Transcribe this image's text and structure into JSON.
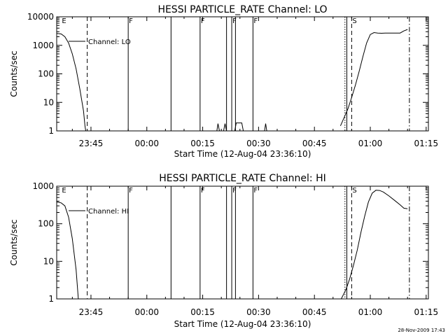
{
  "footer": {
    "timestamp": "28-Nov-2009 17:43"
  },
  "chart_data": [
    {
      "type": "line",
      "title": "HESSI PARTICLE_RATE Channel: LO",
      "xlabel": "Start Time (12-Aug-04 23:36:10)",
      "ylabel": "Counts/sec",
      "yscale": "log",
      "ylim": [
        1,
        10000
      ],
      "xlim_minutes": [
        -24.2,
        75.6
      ],
      "x_tick_labels": [
        "23:45",
        "00:00",
        "00:15",
        "00:30",
        "00:45",
        "01:00",
        "01:15"
      ],
      "x_tick_minutes": [
        -15,
        0,
        15,
        30,
        45,
        60,
        75
      ],
      "y_tick_labels": [
        "1",
        "10",
        "100",
        "1000",
        "10000"
      ],
      "y_tick_values": [
        1,
        10,
        100,
        1000,
        10000
      ],
      "grid": false,
      "legend": {
        "position": "top-left",
        "entries": [
          "Channel: LO"
        ]
      },
      "event_markers": [
        {
          "label": "E",
          "minute": -23.0,
          "style": "none"
        },
        {
          "label": "",
          "minute": -16.0,
          "style": "dashed"
        },
        {
          "label": "F",
          "minute": -5.0,
          "style": "solid"
        },
        {
          "label": "",
          "minute": 6.5,
          "style": "solid"
        },
        {
          "label": "F",
          "minute": 14.3,
          "style": "solid"
        },
        {
          "label": "",
          "minute": 21.4,
          "style": "solid"
        },
        {
          "label": "F",
          "minute": 22.8,
          "style": "solid"
        },
        {
          "label": "",
          "minute": 23.8,
          "style": "solid"
        },
        {
          "label": "F",
          "minute": 28.5,
          "style": "solid"
        },
        {
          "label": "",
          "minute": 53.2,
          "style": "dotted"
        },
        {
          "label": "",
          "minute": 53.7,
          "style": "solid"
        },
        {
          "label": "S",
          "minute": 55.0,
          "style": "dashed"
        },
        {
          "label": "",
          "minute": 70.5,
          "style": "dashdot"
        }
      ],
      "series": [
        {
          "name": "Channel: LO",
          "x": [
            -24.2,
            -23.0,
            -22.0,
            -21.0,
            -20.0,
            -19.0,
            -18.0,
            -17.0,
            -16.6,
            -16.4,
            52.0,
            53.0,
            54.0,
            55.0,
            56.0,
            57.0,
            58.0,
            59.0,
            60.0,
            61.0,
            62.0,
            63.0,
            64.0,
            66.0,
            68.0,
            69.0,
            70.0
          ],
          "y": [
            2600,
            2500,
            2000,
            1200,
            500,
            150,
            30,
            5,
            1.5,
            1,
            1.5,
            3,
            6,
            15,
            40,
            120,
            400,
            1200,
            2400,
            2800,
            2700,
            2650,
            2700,
            2700,
            2700,
            3200,
            3600
          ]
        }
      ],
      "noise_bursts": [
        {
          "x": [
            18.8,
            19.1,
            19.5
          ],
          "y": [
            1,
            1.8,
            1
          ]
        },
        {
          "x": [
            20.6,
            21.0,
            21.4
          ],
          "y": [
            1,
            1.8,
            1
          ]
        },
        {
          "x": [
            23.6,
            24.0,
            24.3,
            25.0,
            25.5,
            25.9
          ],
          "y": [
            1,
            1.9,
            1.9,
            1.9,
            1.9,
            1
          ]
        },
        {
          "x": [
            31.6,
            31.9,
            32.2
          ],
          "y": [
            1,
            1.8,
            1
          ]
        }
      ]
    },
    {
      "type": "line",
      "title": "HESSI PARTICLE_RATE Channel: HI",
      "xlabel": "Start Time (12-Aug-04 23:36:10)",
      "ylabel": "Counts/sec",
      "yscale": "log",
      "ylim": [
        1,
        1000
      ],
      "xlim_minutes": [
        -24.2,
        75.6
      ],
      "x_tick_labels": [
        "23:45",
        "00:00",
        "00:15",
        "00:30",
        "00:45",
        "01:00",
        "01:15"
      ],
      "x_tick_minutes": [
        -15,
        0,
        15,
        30,
        45,
        60,
        75
      ],
      "y_tick_labels": [
        "1",
        "10",
        "100",
        "1000"
      ],
      "y_tick_values": [
        1,
        10,
        100,
        1000
      ],
      "grid": false,
      "legend": {
        "position": "top-left",
        "entries": [
          "Channel: HI"
        ]
      },
      "event_markers": [
        {
          "label": "E",
          "minute": -23.0,
          "style": "none"
        },
        {
          "label": "",
          "minute": -16.0,
          "style": "dashed"
        },
        {
          "label": "F",
          "minute": -5.0,
          "style": "solid"
        },
        {
          "label": "",
          "minute": 6.5,
          "style": "solid"
        },
        {
          "label": "F",
          "minute": 14.3,
          "style": "solid"
        },
        {
          "label": "",
          "minute": 21.4,
          "style": "solid"
        },
        {
          "label": "F",
          "minute": 22.8,
          "style": "solid"
        },
        {
          "label": "",
          "minute": 23.8,
          "style": "solid"
        },
        {
          "label": "F",
          "minute": 28.5,
          "style": "solid"
        },
        {
          "label": "",
          "minute": 53.2,
          "style": "dotted"
        },
        {
          "label": "",
          "minute": 53.7,
          "style": "solid"
        },
        {
          "label": "S",
          "minute": 55.0,
          "style": "dashed"
        },
        {
          "label": "",
          "minute": 70.5,
          "style": "dashdot"
        }
      ],
      "series": [
        {
          "name": "Channel: HI",
          "x": [
            -24.2,
            -23.0,
            -22.0,
            -21.0,
            -20.0,
            -19.0,
            -18.4,
            52.2,
            53.5,
            54.5,
            55.5,
            56.5,
            57.5,
            58.5,
            59.5,
            60.5,
            61.5,
            62.5,
            63.5,
            65.0,
            66.5,
            68.0,
            69.0,
            70.0
          ],
          "y": [
            380,
            360,
            300,
            150,
            40,
            6,
            1,
            1,
            1.8,
            3.5,
            8,
            20,
            60,
            160,
            380,
            650,
            780,
            770,
            700,
            550,
            420,
            320,
            260,
            250
          ]
        }
      ],
      "noise_bursts": []
    }
  ]
}
